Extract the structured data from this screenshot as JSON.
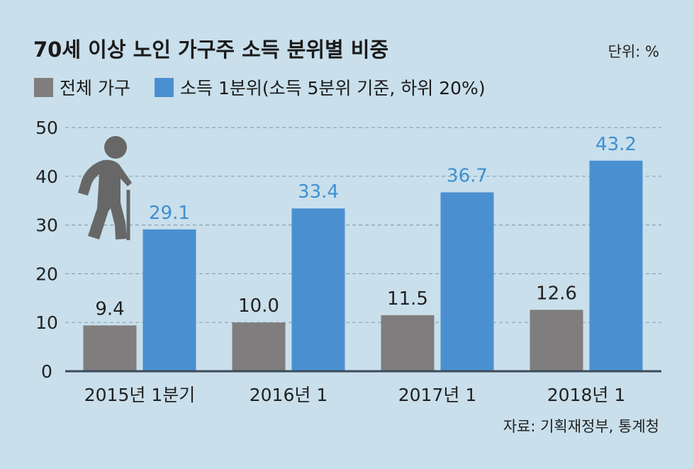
{
  "chart_data": {
    "type": "bar",
    "title": "70세 이상 노인 가구주 소득 분위별 비중",
    "unit_label": "단위: %",
    "source": "자료: 기획재정부, 통계청",
    "categories": [
      "2015년 1분기",
      "2016년 1",
      "2017년 1",
      "2018년 1"
    ],
    "series": [
      {
        "name": "전체 가구",
        "values": [
          9.4,
          10.0,
          11.5,
          12.6
        ],
        "value_labels": [
          "9.4",
          "10.0",
          "11.5",
          "12.6"
        ],
        "color": "#7f7d7e"
      },
      {
        "name": "소득 1분위(소득 5분위 기준, 하위 20%)",
        "values": [
          29.1,
          33.4,
          36.7,
          43.2
        ],
        "value_labels": [
          "29.1",
          "33.4",
          "36.7",
          "43.2"
        ],
        "color": "#4a90d0"
      }
    ],
    "ylim": [
      0,
      50
    ],
    "yticks": [
      0,
      10,
      20,
      30,
      40,
      50
    ],
    "grid": true,
    "legend_position": "top-left",
    "label_colors": {
      "series_1": "#222222",
      "series_2": "#3d8fd3"
    },
    "axis_color": "#3c4a5a",
    "icon": "elderly-person-with-cane-icon"
  }
}
